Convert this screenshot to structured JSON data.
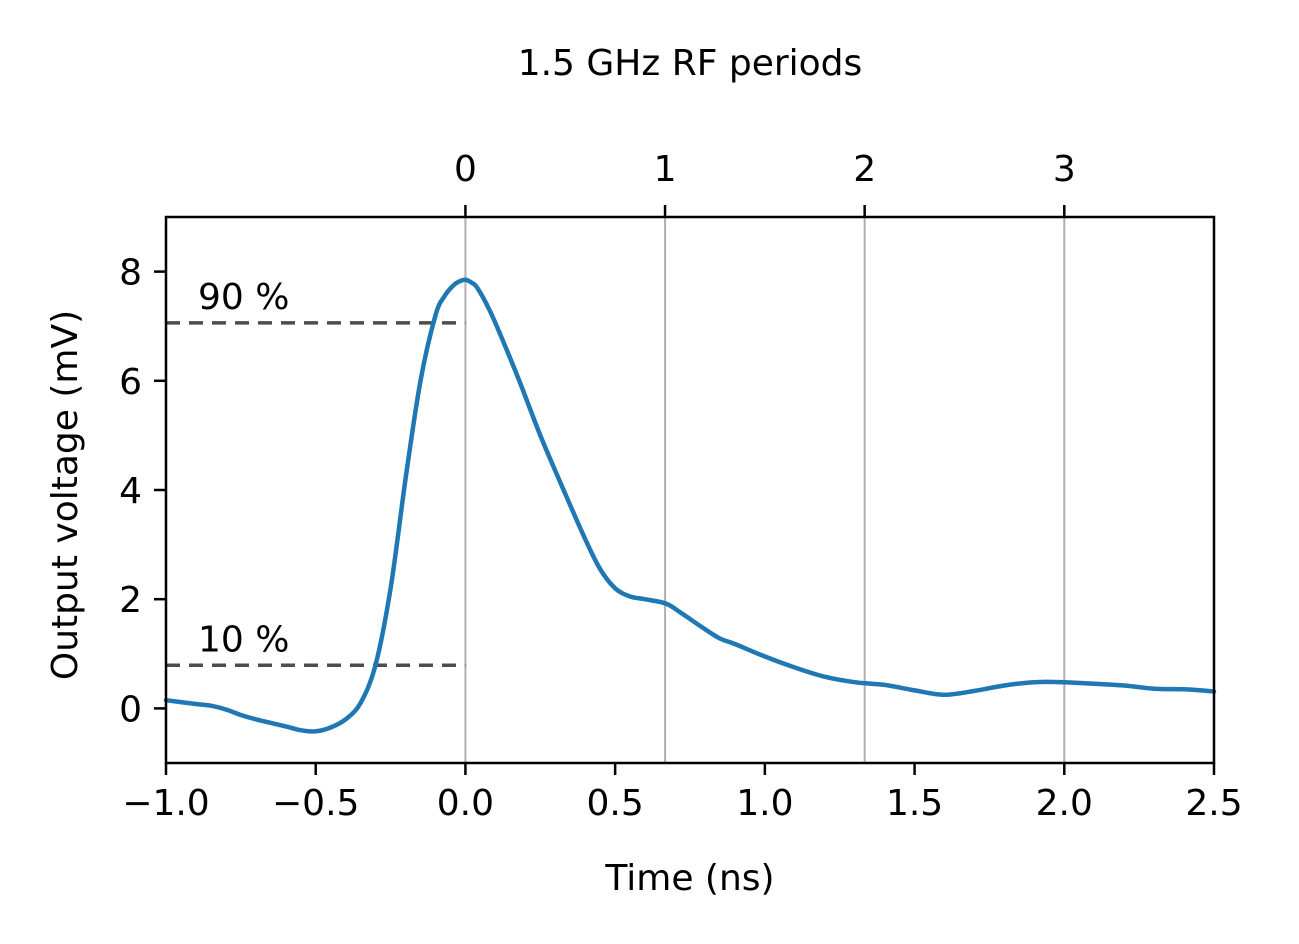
{
  "chart_data": {
    "type": "line",
    "xlabel": "Time (ns)",
    "ylabel": "Output voltage (mV)",
    "top_axis_label": "1.5 GHz RF periods",
    "xlim": [
      -1.0,
      2.5
    ],
    "ylim": [
      -1.0,
      9.0
    ],
    "x_ticks": [
      -1.0,
      -0.5,
      0.0,
      0.5,
      1.0,
      1.5,
      2.0,
      2.5
    ],
    "x_tick_labels": [
      "−1.0",
      "−0.5",
      "0.0",
      "0.5",
      "1.0",
      "1.5",
      "2.0",
      "2.5"
    ],
    "y_ticks": [
      0,
      2,
      4,
      6,
      8
    ],
    "y_tick_labels": [
      "0",
      "2",
      "4",
      "6",
      "8"
    ],
    "top_ticks": [
      0.0,
      0.6667,
      1.3333,
      2.0
    ],
    "top_tick_labels": [
      "0",
      "1",
      "2",
      "3"
    ],
    "vertical_grid": true,
    "series": [
      {
        "color": "#1f77b4",
        "x": [
          -1.0,
          -0.9,
          -0.85,
          -0.8,
          -0.75,
          -0.7,
          -0.6,
          -0.55,
          -0.5,
          -0.45,
          -0.4,
          -0.35,
          -0.3,
          -0.25,
          -0.2,
          -0.15,
          -0.1,
          -0.07,
          -0.04,
          -0.02,
          0.0,
          0.02,
          0.04,
          0.08,
          0.12,
          0.18,
          0.25,
          0.32,
          0.4,
          0.45,
          0.5,
          0.55,
          0.6,
          0.67,
          0.72,
          0.8,
          0.85,
          0.9,
          1.0,
          1.1,
          1.2,
          1.3,
          1.4,
          1.5,
          1.6,
          1.7,
          1.8,
          1.9,
          2.0,
          2.1,
          2.2,
          2.3,
          2.4,
          2.5
        ],
        "y": [
          0.15,
          0.08,
          0.05,
          -0.02,
          -0.12,
          -0.2,
          -0.33,
          -0.4,
          -0.42,
          -0.35,
          -0.2,
          0.1,
          0.8,
          2.2,
          4.2,
          6.0,
          7.2,
          7.55,
          7.75,
          7.82,
          7.85,
          7.8,
          7.7,
          7.3,
          6.8,
          6.0,
          5.0,
          4.1,
          3.1,
          2.55,
          2.2,
          2.05,
          2.0,
          1.92,
          1.75,
          1.45,
          1.28,
          1.18,
          0.95,
          0.75,
          0.58,
          0.48,
          0.43,
          0.33,
          0.25,
          0.32,
          0.42,
          0.48,
          0.48,
          0.45,
          0.42,
          0.36,
          0.35,
          0.31
        ]
      }
    ],
    "annotations": [
      {
        "text": "90 %",
        "level": 7.06,
        "x_start": -1.0,
        "x_end": 0.0,
        "style": "dashed",
        "color": "#4d4d4d"
      },
      {
        "text": "10 %",
        "level": 0.79,
        "x_start": -1.0,
        "x_end": 0.0,
        "style": "dashed",
        "color": "#4d4d4d"
      }
    ]
  }
}
